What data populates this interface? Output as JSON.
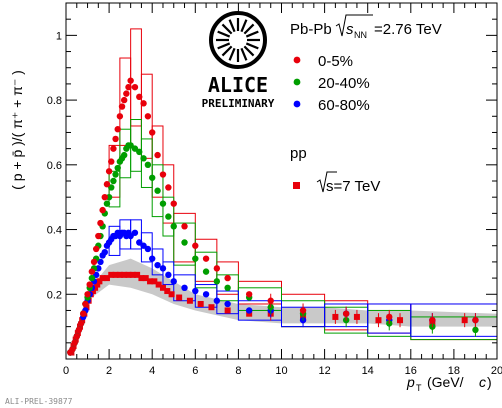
{
  "chart_data": {
    "type": "scatter",
    "xlabel_main": "p",
    "xlabel_sub": "T",
    "xlabel_unit": "(GeV/",
    "xlabel_unit_italic": "c",
    "xlabel_unit_close": ")",
    "ylabel": "( p + p̄ )/( π⁺ + π⁻ )",
    "xlim": [
      0,
      20
    ],
    "ylim": [
      0,
      1.1
    ],
    "xticks": [
      0,
      2,
      4,
      6,
      8,
      10,
      12,
      14,
      16,
      18,
      20
    ],
    "yticks": [
      0.2,
      0.4,
      0.6,
      0.8,
      1
    ],
    "collision_label": "Pb-Pb",
    "energy_label": "=2.76 TeV",
    "energy_sqrt": "s",
    "energy_sub": "NN",
    "pp_header": "pp",
    "pp_energy": "s=7 TeV",
    "logo_text": "ALICE",
    "logo_subtext": "PRELIMINARY",
    "watermark": "ALI-PREL-39877",
    "series": [
      {
        "name": "0-5%",
        "color": "#e8000b",
        "marker": "circle",
        "points": [
          [
            0.2,
            0.02
          ],
          [
            0.3,
            0.03
          ],
          [
            0.4,
            0.05
          ],
          [
            0.5,
            0.07
          ],
          [
            0.6,
            0.09
          ],
          [
            0.7,
            0.11
          ],
          [
            0.8,
            0.14
          ],
          [
            0.9,
            0.17
          ],
          [
            1.0,
            0.2
          ],
          [
            1.1,
            0.23
          ],
          [
            1.2,
            0.27
          ],
          [
            1.3,
            0.3
          ],
          [
            1.4,
            0.34
          ],
          [
            1.5,
            0.38
          ],
          [
            1.6,
            0.42
          ],
          [
            1.7,
            0.46
          ],
          [
            1.8,
            0.5
          ],
          [
            1.9,
            0.54
          ],
          [
            2.0,
            0.58
          ],
          [
            2.1,
            0.61
          ],
          [
            2.2,
            0.65
          ],
          [
            2.3,
            0.68
          ],
          [
            2.4,
            0.71
          ],
          [
            2.5,
            0.75
          ],
          [
            2.6,
            0.78
          ],
          [
            2.7,
            0.8
          ],
          [
            2.8,
            0.82
          ],
          [
            2.9,
            0.84
          ],
          [
            3.0,
            0.86
          ],
          [
            3.2,
            0.84
          ],
          [
            3.4,
            0.81
          ],
          [
            3.6,
            0.79
          ],
          [
            3.8,
            0.75
          ],
          [
            4.0,
            0.7
          ],
          [
            4.25,
            0.63
          ],
          [
            4.5,
            0.57
          ],
          [
            4.75,
            0.53
          ],
          [
            5.0,
            0.48
          ],
          [
            5.5,
            0.41
          ],
          [
            6.0,
            0.35
          ],
          [
            6.5,
            0.31
          ],
          [
            7.0,
            0.28
          ],
          [
            7.5,
            0.25
          ],
          [
            8.5,
            0.2
          ],
          [
            9.5,
            0.18
          ],
          [
            11.0,
            0.15
          ],
          [
            13.0,
            0.14
          ],
          [
            15.0,
            0.13
          ],
          [
            17.0,
            0.12
          ],
          [
            19.0,
            0.12
          ]
        ]
      },
      {
        "name": "20-40%",
        "color": "#009e00",
        "marker": "circle",
        "points": [
          [
            0.2,
            0.02
          ],
          [
            0.3,
            0.03
          ],
          [
            0.4,
            0.05
          ],
          [
            0.5,
            0.07
          ],
          [
            0.6,
            0.09
          ],
          [
            0.7,
            0.11
          ],
          [
            0.8,
            0.14
          ],
          [
            0.9,
            0.17
          ],
          [
            1.0,
            0.19
          ],
          [
            1.1,
            0.22
          ],
          [
            1.2,
            0.25
          ],
          [
            1.3,
            0.28
          ],
          [
            1.4,
            0.31
          ],
          [
            1.5,
            0.35
          ],
          [
            1.6,
            0.38
          ],
          [
            1.7,
            0.41
          ],
          [
            1.8,
            0.45
          ],
          [
            1.9,
            0.48
          ],
          [
            2.0,
            0.5
          ],
          [
            2.1,
            0.53
          ],
          [
            2.2,
            0.55
          ],
          [
            2.3,
            0.57
          ],
          [
            2.4,
            0.59
          ],
          [
            2.5,
            0.61
          ],
          [
            2.6,
            0.62
          ],
          [
            2.7,
            0.63
          ],
          [
            2.8,
            0.65
          ],
          [
            2.9,
            0.66
          ],
          [
            3.0,
            0.66
          ],
          [
            3.2,
            0.65
          ],
          [
            3.4,
            0.64
          ],
          [
            3.6,
            0.62
          ],
          [
            3.8,
            0.6
          ],
          [
            4.0,
            0.56
          ],
          [
            4.25,
            0.52
          ],
          [
            4.5,
            0.48
          ],
          [
            4.75,
            0.44
          ],
          [
            5.0,
            0.41
          ],
          [
            5.5,
            0.36
          ],
          [
            6.0,
            0.31
          ],
          [
            6.5,
            0.27
          ],
          [
            7.0,
            0.24
          ],
          [
            7.5,
            0.22
          ],
          [
            8.5,
            0.19
          ],
          [
            9.5,
            0.16
          ],
          [
            11.0,
            0.14
          ],
          [
            13.0,
            0.12
          ],
          [
            15.0,
            0.11
          ],
          [
            17.0,
            0.1
          ],
          [
            19.0,
            0.09
          ]
        ]
      },
      {
        "name": "60-80%",
        "color": "#0000ff",
        "marker": "circle",
        "points": [
          [
            0.2,
            0.02
          ],
          [
            0.3,
            0.03
          ],
          [
            0.4,
            0.05
          ],
          [
            0.5,
            0.07
          ],
          [
            0.6,
            0.09
          ],
          [
            0.7,
            0.11
          ],
          [
            0.8,
            0.13
          ],
          [
            0.9,
            0.15
          ],
          [
            1.0,
            0.18
          ],
          [
            1.1,
            0.2
          ],
          [
            1.2,
            0.22
          ],
          [
            1.3,
            0.24
          ],
          [
            1.4,
            0.26
          ],
          [
            1.5,
            0.28
          ],
          [
            1.6,
            0.3
          ],
          [
            1.7,
            0.32
          ],
          [
            1.8,
            0.33
          ],
          [
            1.9,
            0.35
          ],
          [
            2.0,
            0.36
          ],
          [
            2.1,
            0.37
          ],
          [
            2.2,
            0.38
          ],
          [
            2.3,
            0.38
          ],
          [
            2.4,
            0.39
          ],
          [
            2.5,
            0.38
          ],
          [
            2.6,
            0.39
          ],
          [
            2.7,
            0.39
          ],
          [
            2.8,
            0.38
          ],
          [
            2.9,
            0.39
          ],
          [
            3.0,
            0.38
          ],
          [
            3.2,
            0.39
          ],
          [
            3.4,
            0.36
          ],
          [
            3.6,
            0.35
          ],
          [
            3.8,
            0.34
          ],
          [
            4.0,
            0.31
          ],
          [
            4.25,
            0.29
          ],
          [
            4.5,
            0.28
          ],
          [
            4.75,
            0.26
          ],
          [
            5.0,
            0.24
          ],
          [
            5.5,
            0.22
          ],
          [
            6.0,
            0.21
          ],
          [
            6.5,
            0.2
          ],
          [
            7.0,
            0.18
          ],
          [
            7.5,
            0.17
          ],
          [
            8.5,
            0.15
          ],
          [
            9.5,
            0.15
          ],
          [
            11.0,
            0.12
          ],
          [
            13.0,
            0.14
          ],
          [
            15.0,
            0.12
          ],
          [
            17.0,
            0.12
          ],
          [
            19.0,
            0.12
          ]
        ]
      },
      {
        "name": "pp",
        "color": "#e8000b",
        "marker": "square",
        "points": [
          [
            0.25,
            0.02
          ],
          [
            0.35,
            0.04
          ],
          [
            0.45,
            0.06
          ],
          [
            0.55,
            0.08
          ],
          [
            0.65,
            0.1
          ],
          [
            0.75,
            0.12
          ],
          [
            0.85,
            0.14
          ],
          [
            0.95,
            0.16
          ],
          [
            1.05,
            0.18
          ],
          [
            1.15,
            0.2
          ],
          [
            1.25,
            0.21
          ],
          [
            1.35,
            0.22
          ],
          [
            1.45,
            0.23
          ],
          [
            1.55,
            0.24
          ],
          [
            1.7,
            0.25
          ],
          [
            1.9,
            0.25
          ],
          [
            2.1,
            0.26
          ],
          [
            2.3,
            0.26
          ],
          [
            2.5,
            0.26
          ],
          [
            2.7,
            0.26
          ],
          [
            2.9,
            0.26
          ],
          [
            3.1,
            0.26
          ],
          [
            3.3,
            0.26
          ],
          [
            3.5,
            0.25
          ],
          [
            3.7,
            0.25
          ],
          [
            3.9,
            0.24
          ],
          [
            4.1,
            0.24
          ],
          [
            4.3,
            0.23
          ],
          [
            4.5,
            0.22
          ],
          [
            4.7,
            0.21
          ],
          [
            4.9,
            0.2
          ],
          [
            5.25,
            0.19
          ],
          [
            5.75,
            0.18
          ],
          [
            6.25,
            0.17
          ],
          [
            6.75,
            0.16
          ],
          [
            7.5,
            0.15
          ],
          [
            8.5,
            0.14
          ],
          [
            9.5,
            0.14
          ],
          [
            11.0,
            0.13
          ],
          [
            12.5,
            0.13
          ],
          [
            13.5,
            0.13
          ],
          [
            14.5,
            0.12
          ],
          [
            15.5,
            0.12
          ],
          [
            17.0,
            0.11
          ],
          [
            18.5,
            0.12
          ]
        ]
      }
    ],
    "syst_boxes": {
      "0-5%": [
        [
          2.0,
          2.5,
          0.5,
          0.66
        ],
        [
          2.5,
          3.0,
          0.66,
          0.93
        ],
        [
          3.0,
          3.5,
          0.72,
          1.02
        ],
        [
          3.5,
          4.0,
          0.62,
          0.88
        ],
        [
          4.0,
          4.5,
          0.5,
          0.72
        ],
        [
          4.5,
          5.0,
          0.42,
          0.6
        ],
        [
          5.0,
          6.0,
          0.3,
          0.45
        ],
        [
          6.0,
          7.0,
          0.24,
          0.37
        ],
        [
          7.0,
          8.0,
          0.2,
          0.3
        ],
        [
          8.0,
          10.0,
          0.17,
          0.24
        ],
        [
          10.0,
          12.0,
          0.1,
          0.2
        ],
        [
          12.0,
          14.0,
          0.09,
          0.18
        ],
        [
          14.0,
          16.0,
          0.08,
          0.17
        ],
        [
          16.0,
          20.0,
          0.06,
          0.17
        ]
      ],
      "20-40%": [
        [
          2.0,
          2.5,
          0.47,
          0.58
        ],
        [
          2.5,
          3.0,
          0.56,
          0.71
        ],
        [
          3.0,
          3.5,
          0.58,
          0.74
        ],
        [
          3.5,
          4.0,
          0.53,
          0.68
        ],
        [
          4.0,
          4.5,
          0.44,
          0.6
        ],
        [
          4.5,
          5.0,
          0.38,
          0.5
        ],
        [
          5.0,
          6.0,
          0.29,
          0.42
        ],
        [
          6.0,
          7.0,
          0.22,
          0.33
        ],
        [
          7.0,
          8.0,
          0.18,
          0.26
        ],
        [
          8.0,
          10.0,
          0.15,
          0.22
        ],
        [
          10.0,
          12.0,
          0.1,
          0.18
        ],
        [
          12.0,
          14.0,
          0.08,
          0.16
        ],
        [
          14.0,
          16.0,
          0.07,
          0.15
        ],
        [
          16.0,
          20.0,
          0.06,
          0.13
        ]
      ],
      "60-80%": [
        [
          2.0,
          2.5,
          0.32,
          0.41
        ],
        [
          2.5,
          3.0,
          0.34,
          0.43
        ],
        [
          3.0,
          3.5,
          0.34,
          0.43
        ],
        [
          3.5,
          4.0,
          0.3,
          0.39
        ],
        [
          4.0,
          4.5,
          0.26,
          0.34
        ],
        [
          4.5,
          5.0,
          0.23,
          0.3
        ],
        [
          5.0,
          6.0,
          0.18,
          0.26
        ],
        [
          6.0,
          7.0,
          0.16,
          0.23
        ],
        [
          7.0,
          8.0,
          0.14,
          0.21
        ],
        [
          8.0,
          10.0,
          0.12,
          0.18
        ],
        [
          10.0,
          12.0,
          0.1,
          0.16
        ],
        [
          12.0,
          14.0,
          0.1,
          0.17
        ],
        [
          14.0,
          16.0,
          0.08,
          0.17
        ],
        [
          16.0,
          20.0,
          0.07,
          0.17
        ]
      ]
    },
    "pp_syst_band": [
      [
        1.0,
        0.18,
        0.21
      ],
      [
        2.0,
        0.23,
        0.29
      ],
      [
        3.0,
        0.22,
        0.31
      ],
      [
        4.0,
        0.2,
        0.28
      ],
      [
        5.0,
        0.17,
        0.24
      ],
      [
        6.0,
        0.15,
        0.2
      ],
      [
        8.0,
        0.12,
        0.17
      ],
      [
        10.0,
        0.11,
        0.16
      ],
      [
        12.0,
        0.11,
        0.16
      ],
      [
        14.0,
        0.11,
        0.15
      ],
      [
        16.0,
        0.1,
        0.15
      ],
      [
        20.0,
        0.1,
        0.14
      ]
    ]
  }
}
